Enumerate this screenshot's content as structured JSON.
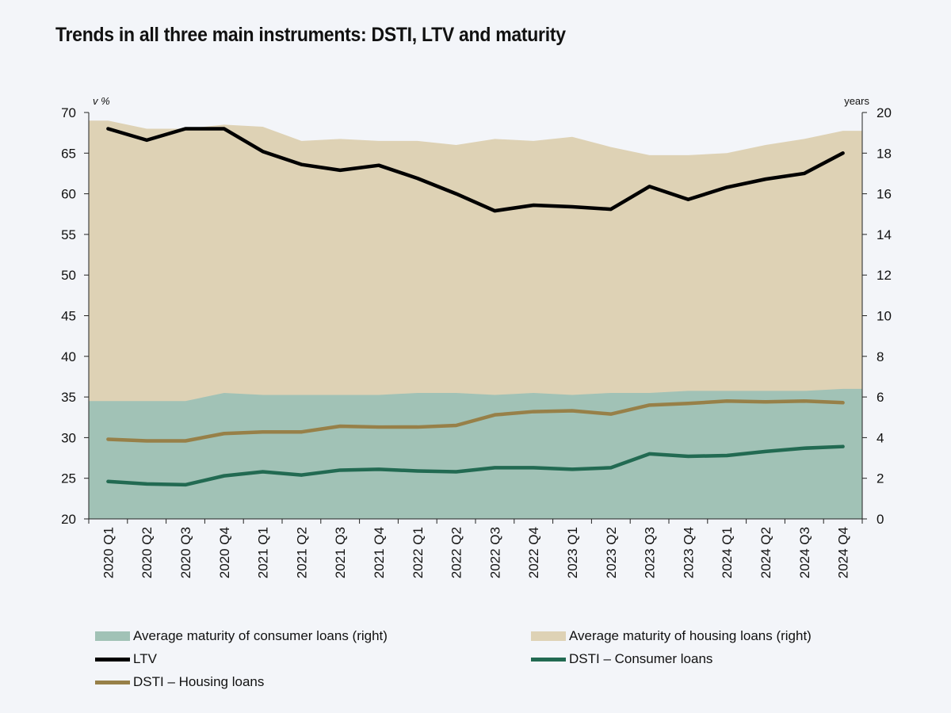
{
  "title": "Trends in all three main instruments: DSTI, LTV and maturity",
  "colors": {
    "housing_area": "#ded2b5",
    "consumer_area": "#a1c2b6",
    "ltv": "#000000",
    "dsti_consumer": "#226a52",
    "dsti_housing": "#978048"
  },
  "chart_data": {
    "type": "area",
    "left_axis_unit": "v %",
    "right_axis_unit": "years",
    "ylim_left": [
      20,
      70
    ],
    "ylim_right": [
      0,
      20
    ],
    "left_ticks": [
      "20",
      "25",
      "30",
      "35",
      "40",
      "45",
      "50",
      "55",
      "60",
      "65",
      "70"
    ],
    "right_ticks": [
      "0",
      "2",
      "4",
      "6",
      "8",
      "10",
      "12",
      "14",
      "16",
      "18",
      "20"
    ],
    "categories": [
      "2020 Q1",
      "2020 Q2",
      "2020 Q3",
      "2020 Q4",
      "2021 Q1",
      "2021 Q2",
      "2021 Q3",
      "2021 Q4",
      "2022 Q1",
      "2022 Q2",
      "2022 Q3",
      "2022 Q4",
      "2023 Q1",
      "2023 Q2",
      "2023 Q3",
      "2023 Q4",
      "2024 Q1",
      "2024 Q2",
      "2024 Q3",
      "2024 Q4"
    ],
    "series": [
      {
        "name": "Average maturity of housing loans (right)",
        "type": "area",
        "axis": "right",
        "values": [
          19.6,
          19.2,
          19.2,
          19.4,
          19.3,
          18.6,
          18.7,
          18.6,
          18.6,
          18.4,
          18.7,
          18.6,
          18.8,
          18.3,
          17.9,
          17.9,
          18.0,
          18.4,
          18.7,
          19.1
        ]
      },
      {
        "name": "Average maturity of consumer loans (right)",
        "type": "area",
        "axis": "right",
        "values": [
          5.8,
          5.8,
          5.8,
          6.2,
          6.1,
          6.1,
          6.1,
          6.1,
          6.2,
          6.2,
          6.1,
          6.2,
          6.1,
          6.2,
          6.2,
          6.3,
          6.3,
          6.3,
          6.3,
          6.4
        ]
      },
      {
        "name": "LTV",
        "type": "line",
        "axis": "left",
        "values": [
          68.0,
          66.6,
          68.0,
          68.0,
          65.2,
          63.6,
          62.9,
          63.5,
          61.9,
          60.0,
          57.9,
          58.6,
          58.4,
          58.1,
          60.9,
          59.3,
          60.8,
          61.8,
          62.5,
          65.0
        ]
      },
      {
        "name": "DSTI – Consumer loans",
        "type": "line",
        "axis": "left",
        "values": [
          24.6,
          24.3,
          24.2,
          25.3,
          25.8,
          25.4,
          26.0,
          26.1,
          25.9,
          25.8,
          26.3,
          26.3,
          26.1,
          26.3,
          28.0,
          27.7,
          27.8,
          28.3,
          28.7,
          28.9
        ]
      },
      {
        "name": "DSTI – Housing loans",
        "type": "line",
        "axis": "left",
        "values": [
          29.8,
          29.6,
          29.6,
          30.5,
          30.7,
          30.7,
          31.4,
          31.3,
          31.3,
          31.5,
          32.8,
          33.2,
          33.3,
          32.9,
          34.0,
          34.2,
          34.5,
          34.4,
          34.5,
          34.3
        ]
      }
    ]
  },
  "legend": {
    "consumer_area": "Average maturity of consumer loans (right)",
    "housing_area": "Average maturity of housing loans (right)",
    "ltv": "LTV",
    "dsti_consumer": "DSTI – Consumer loans",
    "dsti_housing": "DSTI – Housing loans"
  }
}
